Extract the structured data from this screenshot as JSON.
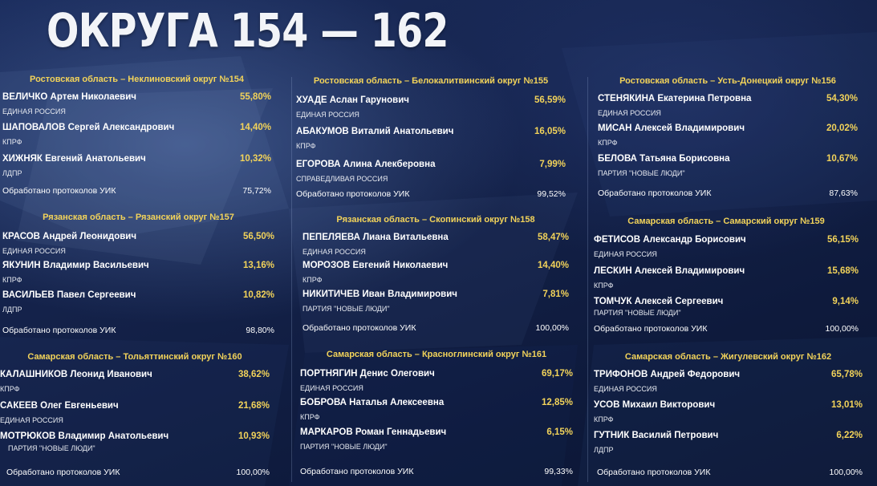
{
  "title": "ОКРУГА 154 — 162",
  "processed_label": "Обработано протоколов УИК",
  "districts": [
    {
      "header": "Ростовская область – Неклиновский округ №154",
      "candidates": [
        {
          "name": "ВЕЛИЧКО Артем Николаевич",
          "pct": "55,80%",
          "party": "ЕДИНАЯ РОССИЯ"
        },
        {
          "name": "ШАПОВАЛОВ Сергей Александрович",
          "pct": "14,40%",
          "party": "КПРФ"
        },
        {
          "name": "ХИЖНЯК Евгений Анатольевич",
          "pct": "10,32%",
          "party": "ЛДПР"
        }
      ],
      "processed": "75,72%"
    },
    {
      "header": "Ростовская область – Белокалитвинский округ №155",
      "candidates": [
        {
          "name": "ХУАДЕ Аслан Гарунович",
          "pct": "56,59%",
          "party": "ЕДИНАЯ РОССИЯ"
        },
        {
          "name": "АБАКУМОВ Виталий Анатольевич",
          "pct": "16,05%",
          "party": "КПРФ"
        },
        {
          "name": "ЕГОРОВА Алина Алекберовна",
          "pct": "7,99%",
          "party": "СПРАВЕДЛИВАЯ РОССИЯ"
        }
      ],
      "processed": "99,52%"
    },
    {
      "header": "Ростовская область – Усть-Донецкий округ №156",
      "candidates": [
        {
          "name": "СТЕНЯКИНА Екатерина Петровна",
          "pct": "54,30%",
          "party": "ЕДИНАЯ РОССИЯ"
        },
        {
          "name": "МИСАН Алексей Владимирович",
          "pct": "20,02%",
          "party": "КПРФ"
        },
        {
          "name": "БЕЛОВА Татьяна Борисовна",
          "pct": "10,67%",
          "party": "ПАРТИЯ \"НОВЫЕ ЛЮДИ\""
        }
      ],
      "processed": "87,63%"
    },
    {
      "header": "Рязанская область – Рязанский округ №157",
      "candidates": [
        {
          "name": "КРАСОВ Андрей Леонидович",
          "pct": "56,50%",
          "party": "ЕДИНАЯ РОССИЯ"
        },
        {
          "name": "ЯКУНИН Владимир Васильевич",
          "pct": "13,16%",
          "party": "КПРФ"
        },
        {
          "name": "ВАСИЛЬЕВ Павел Сергеевич",
          "pct": "10,82%",
          "party": "ЛДПР"
        }
      ],
      "processed": "98,80%"
    },
    {
      "header": "Рязанская область – Скопинский округ №158",
      "candidates": [
        {
          "name": "ПЕПЕЛЯЕВА Лиана Витальевна",
          "pct": "58,47%",
          "party": "ЕДИНАЯ РОССИЯ"
        },
        {
          "name": "МОРОЗОВ Евгений Николаевич",
          "pct": "14,40%",
          "party": "КПРФ"
        },
        {
          "name": "НИКИТИЧЕВ Иван Владимирович",
          "pct": "7,81%",
          "party": "ПАРТИЯ \"НОВЫЕ ЛЮДИ\""
        }
      ],
      "processed": "100,00%"
    },
    {
      "header": "Самарская область – Самарский округ №159",
      "candidates": [
        {
          "name": "ФЕТИСОВ Александр Борисович",
          "pct": "56,15%",
          "party": "ЕДИНАЯ РОССИЯ"
        },
        {
          "name": "ЛЕСКИН Алексей Владимирович",
          "pct": "15,68%",
          "party": "КПРФ"
        },
        {
          "name": "ТОМЧУК Алексей Сергеевич",
          "pct": "9,14%",
          "party": "ПАРТИЯ \"НОВЫЕ ЛЮДИ\""
        }
      ],
      "processed": "100,00%"
    },
    {
      "header": "Самарская область – Тольяттинский округ №160",
      "candidates": [
        {
          "name": "КАЛАШНИКОВ Леонид Иванович",
          "pct": "38,62%",
          "party": "КПРФ"
        },
        {
          "name": "САКЕЕВ Олег Евгеньевич",
          "pct": "21,68%",
          "party": "ЕДИНАЯ РОССИЯ"
        },
        {
          "name": "МОТРЮКОВ Владимир Анатольевич",
          "pct": "10,93%",
          "party": "ПАРТИЯ \"НОВЫЕ ЛЮДИ\""
        }
      ],
      "processed": "100,00%"
    },
    {
      "header": "Самарская область – Красноглинский округ №161",
      "candidates": [
        {
          "name": "ПОРТНЯГИН Денис Олегович",
          "pct": "69,17%",
          "party": "ЕДИНАЯ РОССИЯ"
        },
        {
          "name": "БОБРОВА Наталья Алексеевна",
          "pct": "12,85%",
          "party": "КПРФ"
        },
        {
          "name": "МАРКАРОВ Роман Геннадьевич",
          "pct": "6,15%",
          "party": "ПАРТИЯ \"НОВЫЕ ЛЮДИ\""
        }
      ],
      "processed": "99,33%"
    },
    {
      "header": "Самарская область – Жигулевский округ №162",
      "candidates": [
        {
          "name": "ТРИФОНОВ Андрей Федорович",
          "pct": "65,78%",
          "party": "ЕДИНАЯ РОССИЯ"
        },
        {
          "name": "УСОВ Михаил Викторович",
          "pct": "13,01%",
          "party": "КПРФ"
        },
        {
          "name": "ГУТНИК Василий Петрович",
          "pct": "6,22%",
          "party": "ЛДПР"
        }
      ],
      "processed": "100,00%"
    }
  ]
}
